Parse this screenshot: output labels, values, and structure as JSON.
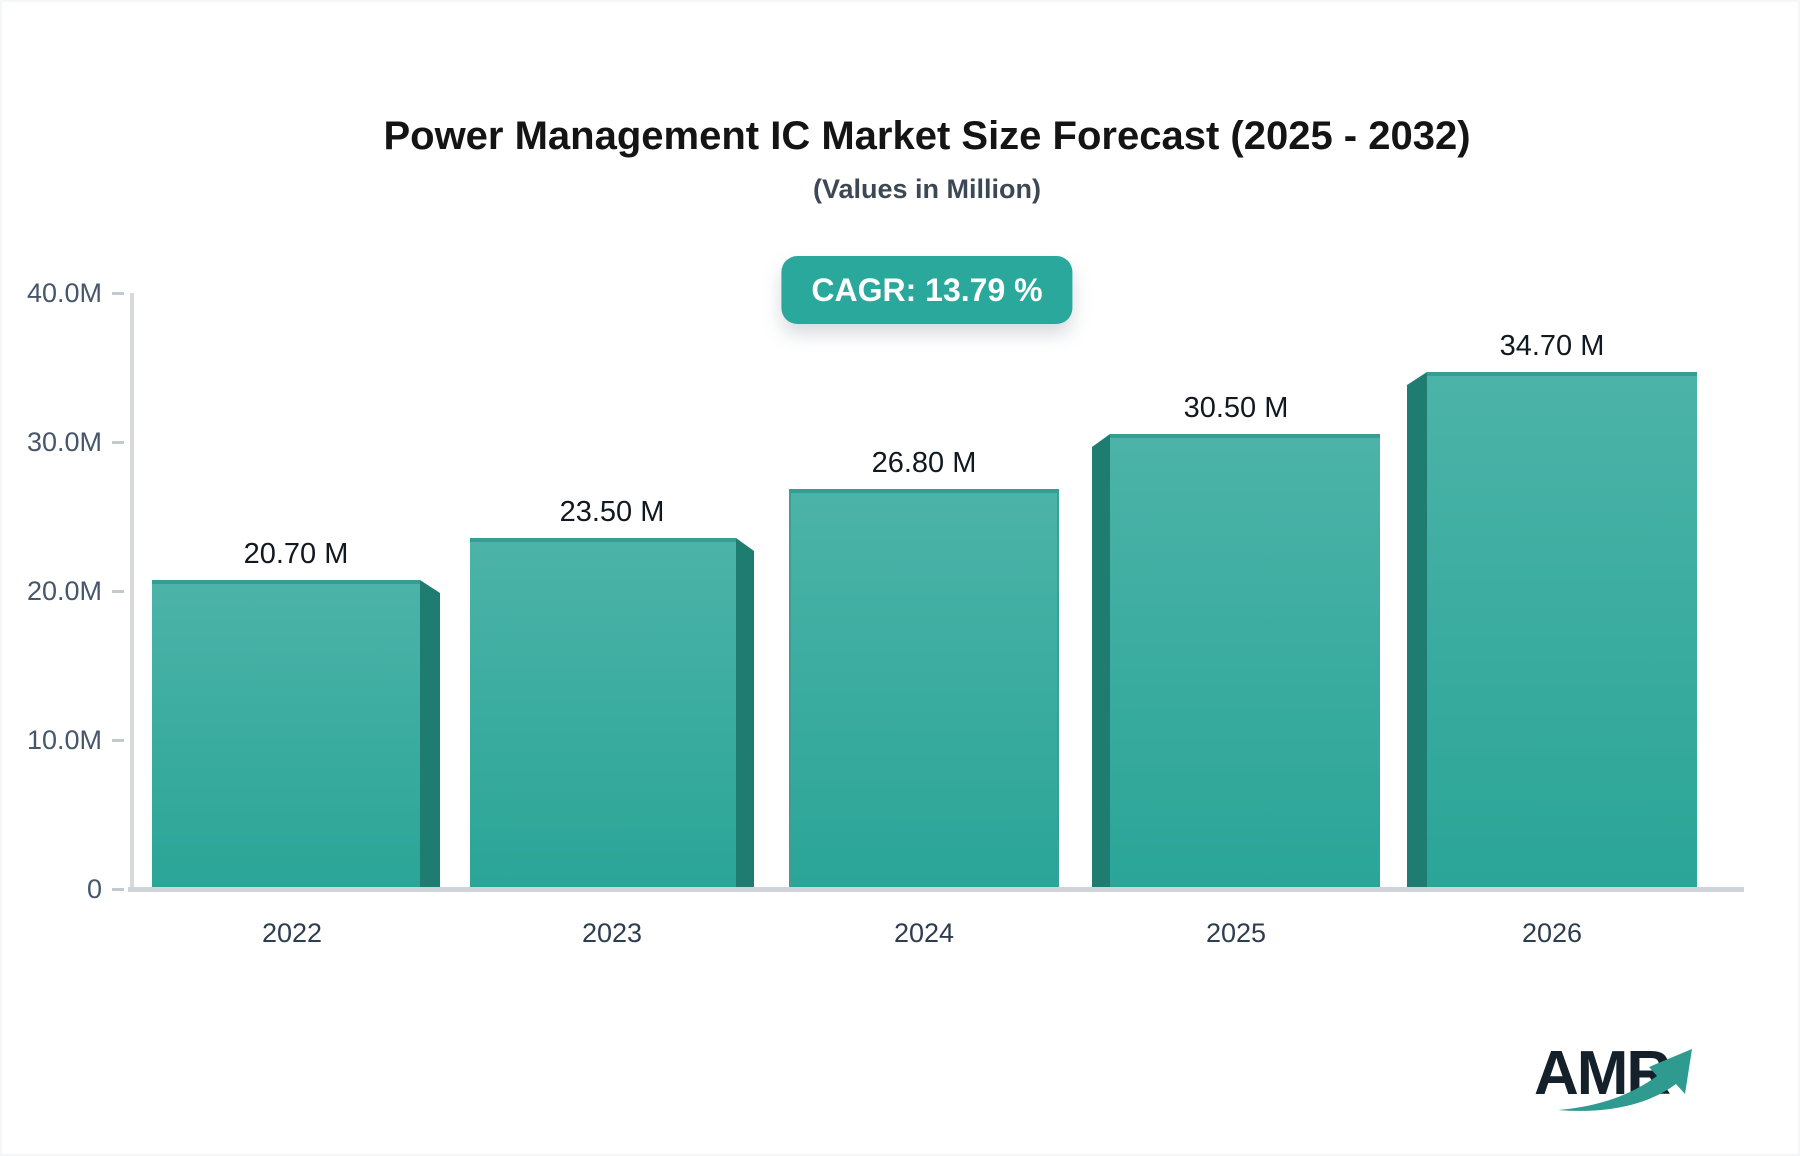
{
  "header": {
    "title": "Power Management IC Market Size Forecast (2025 - 2032)",
    "subtitle": "(Values in Million)",
    "cagr_label": "CAGR: 13.79 %"
  },
  "chart_data": {
    "type": "bar",
    "title": "Power Management IC Market Size Forecast (2025 - 2032)",
    "subtitle": "(Values in Million)",
    "unit": "Million",
    "cagr_percent": 13.79,
    "categories": [
      "2022",
      "2023",
      "2024",
      "2025",
      "2026"
    ],
    "values": [
      20.7,
      23.5,
      26.8,
      30.5,
      34.7
    ],
    "value_labels": [
      "20.70 M",
      "23.50 M",
      "26.80 M",
      "30.50 M",
      "34.70 M"
    ],
    "ytick_labels": [
      "40.0M",
      "30.0M",
      "20.0M",
      "10.0M",
      "0"
    ],
    "ylim": [
      0,
      40
    ],
    "grid": "off",
    "legend": "none",
    "bar_style": "pseudo-3d extruded, teal gradient"
  },
  "colors": {
    "bar_gradient_top": "#4cb3a8",
    "bar_gradient_bottom": "#2aa597",
    "bar_side_face": "#1f7c71",
    "bar_top_edge": "#379d92",
    "badge_background": "#2BA89C",
    "badge_text": "#ffffff",
    "axis_line": "#d6dade",
    "title_text": "#141414",
    "axis_label_text": "#46566b",
    "logo_text_color": "#14212a",
    "logo_arrow_color": "#2e9a90"
  },
  "logo": {
    "text": "AMR",
    "arrow_icon": "trending-up-arrow"
  }
}
